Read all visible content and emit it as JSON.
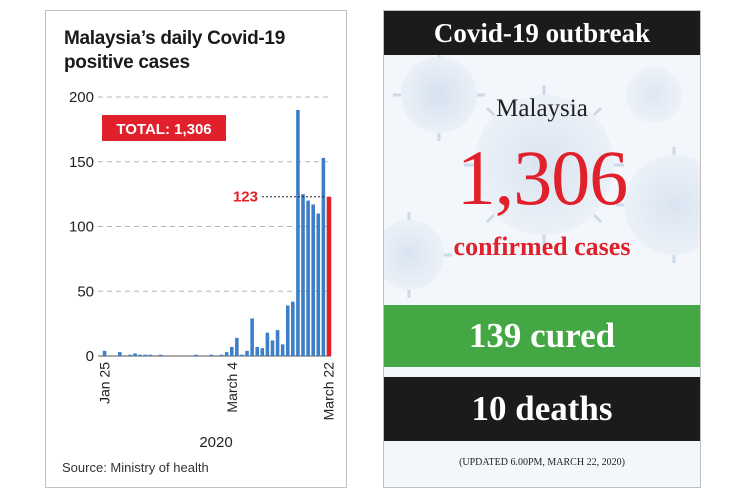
{
  "chart_data": {
    "type": "bar",
    "title": "Malaysia’s daily Covid-19 positive cases",
    "total_label": "TOTAL: 1,306",
    "highlight_value": 123,
    "highlight_label": "123",
    "x_tick_labels": [
      "Jan 25",
      "March 4",
      "March 22"
    ],
    "xlabel": "2020",
    "ylabel": "",
    "ylim": [
      0,
      200
    ],
    "yticks": [
      0,
      50,
      100,
      150,
      200
    ],
    "grid": true,
    "source": "Source: Ministry of health",
    "values": [
      4,
      0,
      0,
      3,
      0,
      1,
      2,
      1,
      1,
      1,
      0,
      1,
      0,
      0,
      0,
      0,
      0,
      0,
      1,
      0,
      0,
      1,
      0,
      1,
      3,
      7,
      14,
      1,
      4,
      29,
      7,
      6,
      18,
      12,
      20,
      9,
      39,
      42,
      190,
      125,
      120,
      117,
      110,
      153,
      123
    ]
  },
  "info_panel": {
    "header": "Covid-19 outbreak",
    "country": "Malaysia",
    "total_cases": "1,306",
    "confirmed_label": "confirmed cases",
    "cured_label": "139 cured",
    "deaths_label": "10 deaths",
    "updated_note": "(UPDATED 6.00PM, MARCH 22, 2020)"
  },
  "colors": {
    "bar": "#3d7ec8",
    "highlight_bar": "#e0202a",
    "total_badge": "#e0202a",
    "cured": "#43a843",
    "deaths": "#1b1b1b"
  }
}
